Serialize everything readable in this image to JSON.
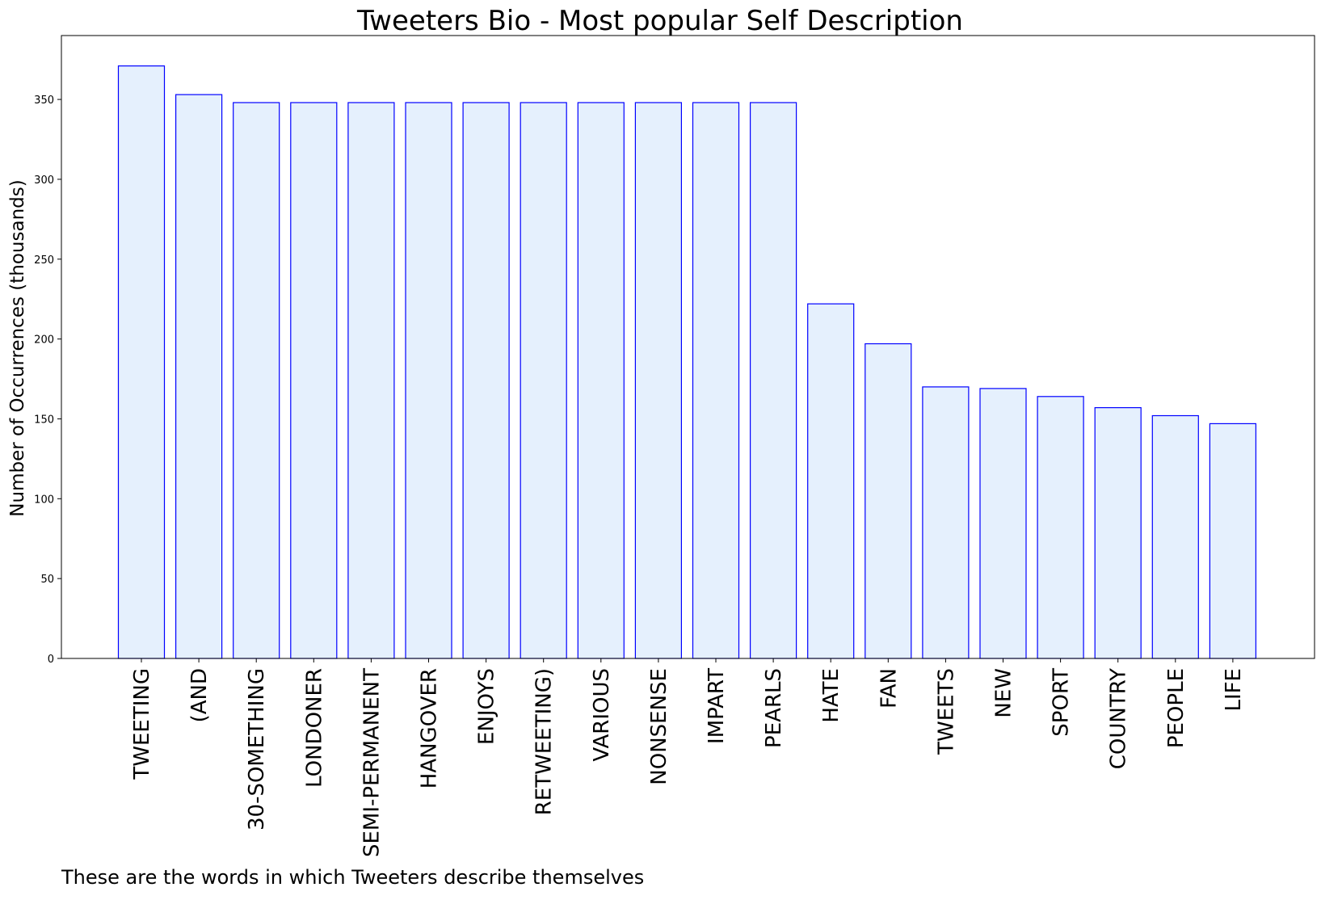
{
  "chart_data": {
    "type": "bar",
    "title": "Tweeters Bio - Most popular Self Description",
    "xlabel": "",
    "ylabel": "Number of Occurrences (thousands)",
    "caption": "These are the words in which Tweeters describe themselves",
    "categories": [
      "TWEETING",
      "(AND",
      "30-SOMETHING",
      "LONDONER",
      "SEMI-PERMANENT",
      "HANGOVER",
      "ENJOYS",
      "RETWEETING)",
      "VARIOUS",
      "NONSENSE",
      "IMPART",
      "PEARLS",
      "HATE",
      "FAN",
      "TWEETS",
      "NEW",
      "SPORT",
      "COUNTRY",
      "PEOPLE",
      "LIFE"
    ],
    "values": [
      371,
      353,
      348,
      348,
      348,
      348,
      348,
      348,
      348,
      348,
      348,
      348,
      222,
      197,
      170,
      169,
      164,
      157,
      152,
      147
    ],
    "yticks": [
      "0",
      "50",
      "100",
      "150",
      "200",
      "250",
      "300",
      "350"
    ],
    "ylim": [
      0,
      390
    ],
    "grid": false,
    "legend": "none",
    "colors": {
      "bar_fill": "#e5f0fd",
      "bar_edge": "#0000ff",
      "axis": "#000000"
    }
  }
}
